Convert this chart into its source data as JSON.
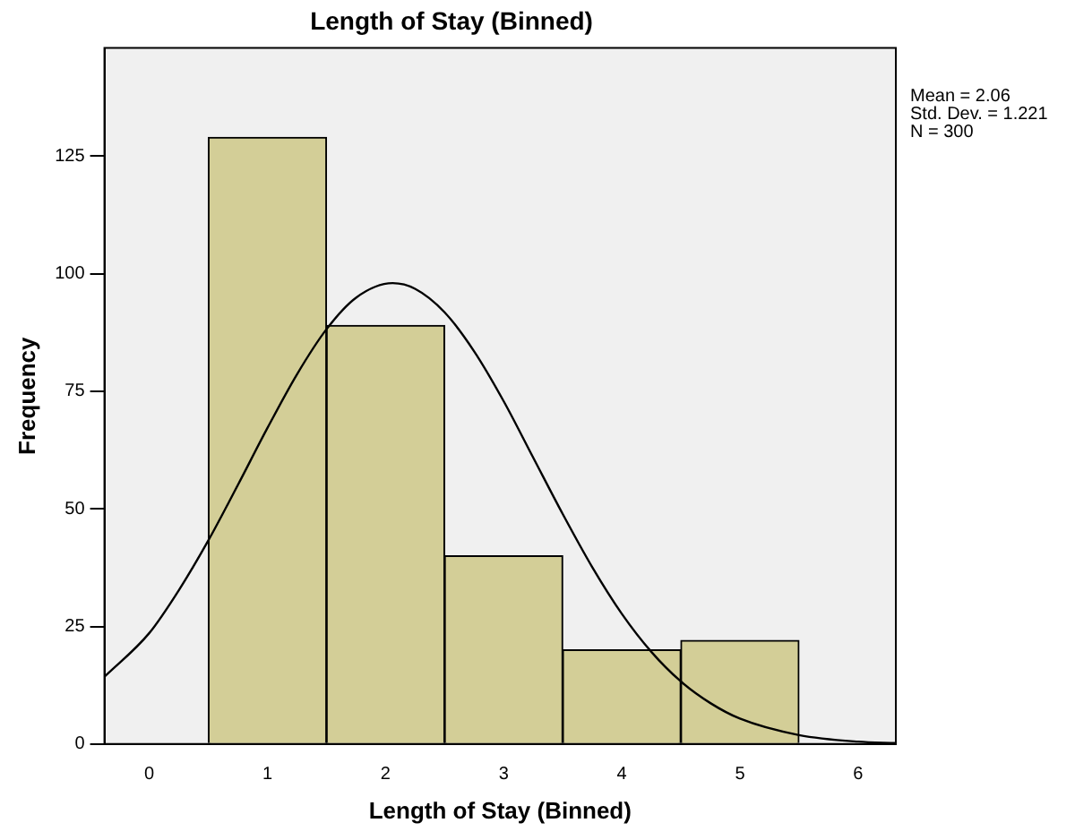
{
  "chart_data": {
    "type": "histogram",
    "title": "Length of Stay (Binned)",
    "xlabel": "Length of Stay (Binned)",
    "ylabel": "Frequency",
    "bins": [
      0.5,
      1.5,
      2.5,
      3.5,
      4.5,
      5.5
    ],
    "values": [
      129,
      89,
      40,
      20,
      22
    ],
    "color": "#d3ce97",
    "xlim": [
      -0.38,
      6.32
    ],
    "ylim": [
      0,
      148
    ],
    "xticks": [
      0,
      1,
      2,
      3,
      4,
      5,
      6
    ],
    "yticks": [
      0,
      25,
      50,
      75,
      100,
      125
    ],
    "grid": false,
    "series": [
      {
        "type": "line",
        "color": "#000000",
        "x": [
          -0.38,
          0,
          0.25,
          0.5,
          0.75,
          1,
          1.25,
          1.5,
          1.75,
          2.06,
          2.25,
          2.5,
          2.75,
          3,
          3.25,
          3.5,
          3.75,
          4,
          4.25,
          4.5,
          4.75,
          5,
          5.5,
          6,
          6.32
        ],
        "values": [
          14.3,
          23.6,
          32.7,
          43.3,
          55.1,
          67.2,
          78.6,
          88.2,
          94.9,
          98.0,
          96.8,
          91.8,
          83.5,
          72.9,
          60.9,
          48.9,
          37.6,
          27.7,
          19.6,
          13.3,
          8.7,
          5.4,
          1.9,
          0.5,
          0.2
        ]
      }
    ],
    "annotations": [
      "Mean = 2.06",
      "Std. Dev. = 1.221",
      "N = 300"
    ]
  }
}
